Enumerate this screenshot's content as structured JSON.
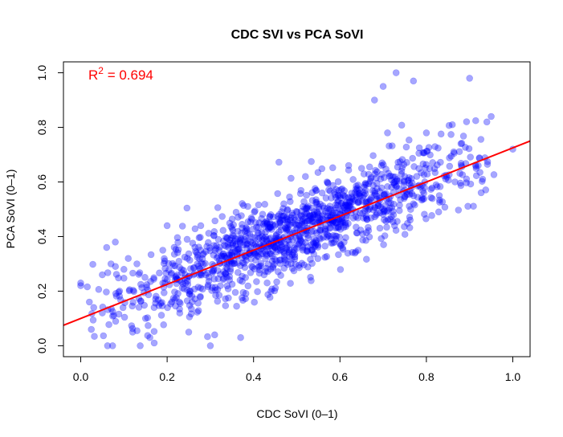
{
  "chart_data": {
    "type": "scatter",
    "title": "CDC SVI vs PCA SoVI",
    "xlabel": "CDC SoVI (0–1)",
    "ylabel": "PCA SoVI (0–1)",
    "xlim": [
      -0.04,
      1.04
    ],
    "ylim": [
      -0.04,
      1.04
    ],
    "xticks": [
      "0.0",
      "0.2",
      "0.4",
      "0.6",
      "0.8",
      "1.0"
    ],
    "yticks": [
      "0.0",
      "0.2",
      "0.4",
      "0.6",
      "0.8",
      "1.0"
    ],
    "grid": false,
    "point_color": "#0000ff",
    "point_opacity": 0.35,
    "fit_line": {
      "intercept": 0.1,
      "slope": 0.625,
      "color": "#ff0000"
    },
    "annotation": {
      "prefix": "R",
      "superscript": "2",
      "text": " = 0.694",
      "color": "#ff0000"
    },
    "n_points": 1300,
    "x": [
      0.0,
      0.0,
      0.02,
      0.03,
      0.05,
      0.05,
      0.06,
      0.07,
      0.08,
      0.09,
      0.1,
      0.11,
      0.12,
      0.13,
      0.15,
      0.16,
      0.17,
      0.19,
      0.2,
      0.22,
      0.25,
      0.27,
      0.3,
      0.31,
      0.32,
      0.35,
      0.37,
      0.38,
      0.4,
      0.42,
      0.44,
      0.45,
      0.47,
      0.5,
      0.52,
      0.55,
      0.57,
      0.6,
      0.62,
      0.65,
      0.68,
      0.7,
      0.71,
      0.73,
      0.75,
      0.77,
      0.8,
      0.83,
      0.86,
      0.88,
      0.9,
      0.92,
      0.94,
      0.95,
      1.0
    ],
    "y": [
      0.22,
      0.23,
      0.16,
      0.14,
      0.26,
      0.12,
      0.36,
      0.3,
      0.38,
      0.2,
      0.28,
      0.32,
      0.05,
      0.3,
      0.1,
      0.03,
      0.01,
      0.35,
      0.44,
      0.25,
      0.05,
      0.3,
      0.0,
      0.04,
      0.35,
      0.33,
      0.03,
      0.42,
      0.37,
      0.4,
      0.48,
      0.36,
      0.52,
      0.43,
      0.62,
      0.48,
      0.6,
      0.55,
      0.66,
      0.65,
      0.9,
      0.95,
      0.78,
      1.0,
      0.62,
      0.97,
      0.78,
      0.55,
      0.81,
      0.74,
      0.98,
      0.66,
      0.82,
      0.84,
      0.72
    ]
  }
}
